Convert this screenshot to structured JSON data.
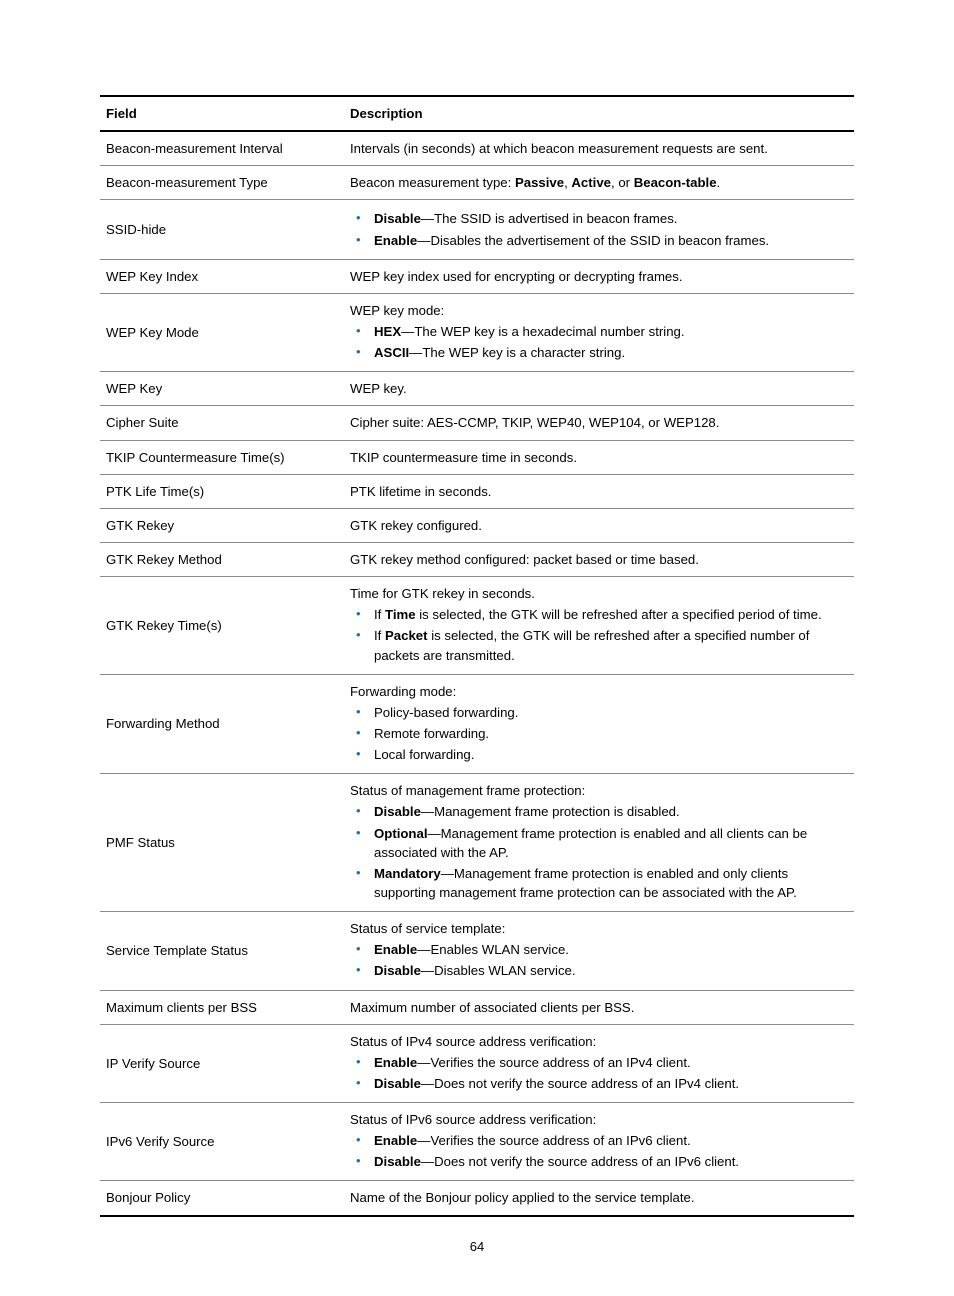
{
  "page_number": "64",
  "colors": {
    "bullet": "#1f6fb5",
    "text": "#000000",
    "border_heavy": "#000000",
    "border_light": "#8a8a8a",
    "background": "#ffffff"
  },
  "typography": {
    "base_fontsize_pt": 10,
    "header_weight": "bold",
    "font_family": "Futura / Century Gothic style sans-serif"
  },
  "table": {
    "headers": {
      "field": "Field",
      "description": "Description"
    },
    "rows": [
      {
        "field": "Beacon-measurement Interval",
        "desc": {
          "type": "text",
          "text": "Intervals (in seconds) at which beacon measurement requests are sent."
        }
      },
      {
        "field": "Beacon-measurement Type",
        "desc": {
          "type": "rich",
          "runs": [
            {
              "t": "Beacon measurement type: "
            },
            {
              "t": "Passive",
              "b": true
            },
            {
              "t": ", "
            },
            {
              "t": "Active",
              "b": true
            },
            {
              "t": ", or "
            },
            {
              "t": "Beacon-table",
              "b": true
            },
            {
              "t": "."
            }
          ]
        }
      },
      {
        "field": "SSID-hide",
        "desc": {
          "type": "bullets",
          "items": [
            [
              {
                "t": "Disable",
                "b": true
              },
              {
                "t": "—The SSID is advertised in beacon frames."
              }
            ],
            [
              {
                "t": "Enable",
                "b": true
              },
              {
                "t": "—Disables the advertisement of the SSID in beacon frames."
              }
            ]
          ]
        }
      },
      {
        "field": "WEP Key Index",
        "desc": {
          "type": "text",
          "text": "WEP key index used for encrypting or decrypting frames."
        }
      },
      {
        "field": "WEP Key Mode",
        "desc": {
          "type": "intro_bullets",
          "intro": "WEP key mode:",
          "items": [
            [
              {
                "t": "HEX",
                "b": true
              },
              {
                "t": "—The WEP key is a hexadecimal number string."
              }
            ],
            [
              {
                "t": "ASCII",
                "b": true
              },
              {
                "t": "—The WEP key is a character string."
              }
            ]
          ]
        }
      },
      {
        "field": "WEP Key",
        "desc": {
          "type": "text",
          "text": "WEP key."
        }
      },
      {
        "field": "Cipher Suite",
        "desc": {
          "type": "text",
          "text": "Cipher suite: AES-CCMP, TKIP, WEP40, WEP104, or WEP128."
        }
      },
      {
        "field": "TKIP Countermeasure Time(s)",
        "desc": {
          "type": "text",
          "text": "TKIP countermeasure time in seconds."
        }
      },
      {
        "field": "PTK Life Time(s)",
        "desc": {
          "type": "text",
          "text": "PTK lifetime in seconds."
        }
      },
      {
        "field": "GTK Rekey",
        "desc": {
          "type": "text",
          "text": "GTK rekey configured."
        }
      },
      {
        "field": "GTK Rekey Method",
        "desc": {
          "type": "text",
          "text": "GTK rekey method configured: packet based or time based."
        }
      },
      {
        "field": "GTK Rekey Time(s)",
        "desc": {
          "type": "intro_bullets",
          "intro": "Time for GTK rekey in seconds.",
          "items": [
            [
              {
                "t": "If "
              },
              {
                "t": "Time",
                "b": true
              },
              {
                "t": " is selected, the GTK will be refreshed after a specified period of time."
              }
            ],
            [
              {
                "t": "If "
              },
              {
                "t": "Packet",
                "b": true
              },
              {
                "t": " is selected, the GTK will be refreshed after a specified number of packets are transmitted."
              }
            ]
          ]
        }
      },
      {
        "field": "Forwarding Method",
        "desc": {
          "type": "intro_bullets",
          "intro": "Forwarding mode:",
          "items": [
            [
              {
                "t": "Policy-based forwarding."
              }
            ],
            [
              {
                "t": "Remote forwarding."
              }
            ],
            [
              {
                "t": "Local forwarding."
              }
            ]
          ]
        }
      },
      {
        "field": "PMF Status",
        "desc": {
          "type": "intro_bullets",
          "intro": "Status of management frame protection:",
          "items": [
            [
              {
                "t": "Disable",
                "b": true
              },
              {
                "t": "—Management frame protection is disabled."
              }
            ],
            [
              {
                "t": "Optional",
                "b": true
              },
              {
                "t": "—Management frame protection is enabled and all clients can be associated with the AP."
              }
            ],
            [
              {
                "t": "Mandatory",
                "b": true
              },
              {
                "t": "—Management frame protection is enabled and only clients supporting management frame protection can be associated with the AP."
              }
            ]
          ]
        }
      },
      {
        "field": "Service Template Status",
        "desc": {
          "type": "intro_bullets",
          "intro": "Status of service template:",
          "items": [
            [
              {
                "t": "Enable",
                "b": true
              },
              {
                "t": "—Enables WLAN service."
              }
            ],
            [
              {
                "t": "Disable",
                "b": true
              },
              {
                "t": "—Disables WLAN service."
              }
            ]
          ]
        }
      },
      {
        "field": "Maximum clients per BSS",
        "desc": {
          "type": "text",
          "text": "Maximum number of associated clients per BSS."
        }
      },
      {
        "field": "IP Verify Source",
        "desc": {
          "type": "intro_bullets",
          "intro": "Status of IPv4 source address verification:",
          "items": [
            [
              {
                "t": "Enable",
                "b": true
              },
              {
                "t": "—Verifies the source address of an IPv4 client."
              }
            ],
            [
              {
                "t": "Disable",
                "b": true
              },
              {
                "t": "—Does not verify the source address of an IPv4 client."
              }
            ]
          ]
        }
      },
      {
        "field": "IPv6 Verify Source",
        "desc": {
          "type": "intro_bullets",
          "intro": "Status of IPv6 source address verification:",
          "items": [
            [
              {
                "t": "Enable",
                "b": true
              },
              {
                "t": "—Verifies the source address of an IPv6 client."
              }
            ],
            [
              {
                "t": "Disable",
                "b": true
              },
              {
                "t": "—Does not verify the source address of an IPv6 client."
              }
            ]
          ]
        }
      },
      {
        "field": "Bonjour Policy",
        "desc": {
          "type": "text",
          "text": "Name of the Bonjour policy applied to the service template."
        }
      }
    ]
  }
}
